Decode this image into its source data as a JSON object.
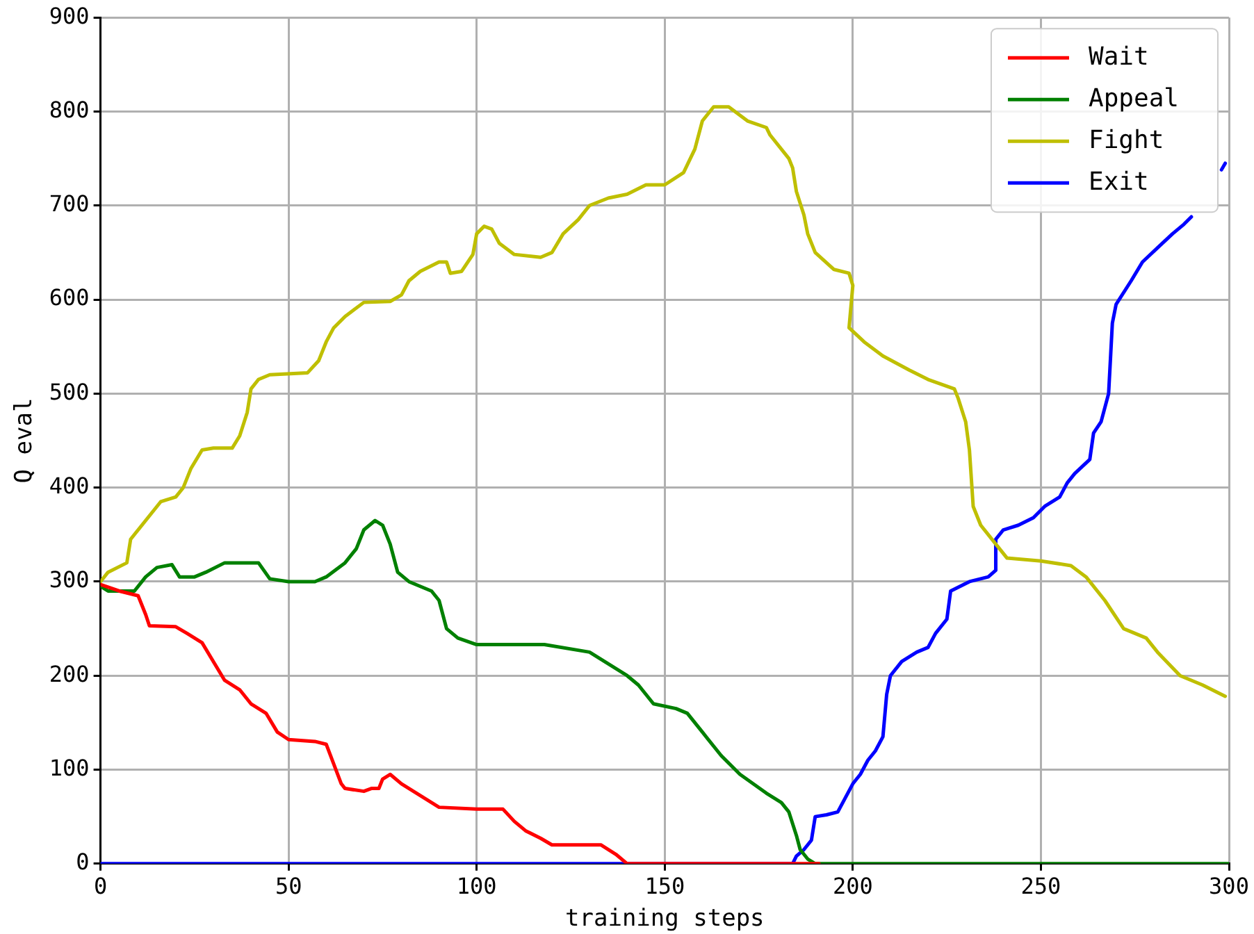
{
  "chart_data": {
    "type": "line",
    "xlabel": "training steps",
    "ylabel": "Q eval",
    "xlim": [
      0,
      300
    ],
    "xticks": [
      0,
      50,
      100,
      150,
      200,
      250,
      300
    ],
    "ylim": [
      0,
      900
    ],
    "yticks": [
      0,
      100,
      200,
      300,
      400,
      500,
      600,
      700,
      800,
      900
    ],
    "grid": true,
    "legend": "top right",
    "marker": "none",
    "line_style": "solid",
    "series": [
      {
        "name": "Wait",
        "color": "#ff0000",
        "x": [
          0,
          5,
          10,
          12,
          13,
          20,
          23,
          27,
          30,
          33,
          37,
          40,
          44,
          47,
          50,
          57,
          60,
          64,
          65,
          70,
          72,
          74,
          75,
          77,
          80,
          82,
          86,
          90,
          100,
          107,
          110,
          113,
          117,
          120,
          133,
          137,
          140,
          150,
          160,
          170,
          180,
          191
        ],
        "values": [
          297,
          290,
          285,
          265,
          253,
          252,
          245,
          235,
          215,
          195,
          185,
          170,
          160,
          140,
          132,
          130,
          127,
          85,
          80,
          77,
          80,
          80,
          90,
          95,
          85,
          80,
          70,
          60,
          58,
          58,
          45,
          35,
          27,
          20,
          20,
          10,
          0,
          0,
          0,
          0,
          0,
          0
        ]
      },
      {
        "name": "Appeal",
        "color": "#008000",
        "x": [
          0,
          2,
          9,
          12,
          15,
          19,
          21,
          25,
          28,
          33,
          42,
          45,
          50,
          57,
          60,
          65,
          68,
          70,
          73,
          75,
          77,
          79,
          82,
          88,
          90,
          92,
          95,
          100,
          118,
          130,
          134,
          140,
          143,
          147,
          153,
          156,
          160,
          165,
          170,
          177,
          181,
          183,
          185,
          186,
          188,
          190,
          200,
          250,
          300
        ],
        "values": [
          295,
          290,
          290,
          305,
          315,
          318,
          305,
          305,
          310,
          320,
          320,
          303,
          300,
          300,
          305,
          320,
          335,
          355,
          365,
          360,
          340,
          310,
          300,
          290,
          280,
          250,
          240,
          233,
          233,
          225,
          215,
          200,
          190,
          170,
          165,
          160,
          140,
          115,
          95,
          75,
          65,
          55,
          30,
          15,
          5,
          0,
          0,
          0,
          0
        ]
      },
      {
        "name": "Fight",
        "color": "#bfbf00",
        "x": [
          0,
          2,
          7,
          8,
          10,
          13,
          16,
          20,
          22,
          24,
          27,
          30,
          35,
          37,
          39,
          40,
          42,
          45,
          55,
          58,
          60,
          62,
          65,
          70,
          77,
          80,
          82,
          85,
          90,
          92,
          93,
          96,
          99,
          100,
          102,
          104,
          106,
          110,
          117,
          120,
          123,
          127,
          130,
          135,
          140,
          145,
          150,
          155,
          158,
          160,
          163,
          167,
          172,
          177,
          178,
          183,
          184,
          185,
          187,
          188,
          190,
          195,
          199,
          200,
          199,
          203,
          208,
          215,
          220,
          227,
          228,
          230,
          231,
          232,
          234,
          238,
          241,
          250,
          258,
          262,
          267,
          272,
          278,
          281,
          287,
          293,
          299
        ],
        "values": [
          300,
          310,
          320,
          345,
          355,
          370,
          385,
          390,
          400,
          420,
          440,
          442,
          442,
          455,
          480,
          505,
          515,
          520,
          522,
          535,
          555,
          570,
          582,
          597,
          598,
          605,
          620,
          630,
          640,
          640,
          628,
          630,
          648,
          670,
          678,
          675,
          660,
          648,
          645,
          650,
          670,
          685,
          700,
          708,
          712,
          722,
          722,
          735,
          760,
          790,
          805,
          805,
          790,
          783,
          775,
          750,
          740,
          715,
          690,
          670,
          650,
          632,
          628,
          615,
          570,
          555,
          540,
          525,
          515,
          505,
          495,
          470,
          440,
          380,
          360,
          340,
          325,
          322,
          317,
          305,
          280,
          250,
          240,
          225,
          200,
          190,
          178
        ]
      },
      {
        "name": "Exit",
        "color": "#0000ff",
        "x": [
          0,
          100,
          184,
          185,
          187,
          189,
          190,
          193,
          196,
          198,
          200,
          202,
          204,
          206,
          208,
          209,
          210,
          213,
          217,
          220,
          222,
          225,
          226,
          231,
          236,
          238,
          238,
          240,
          244,
          248,
          251,
          255,
          257,
          259,
          263,
          264,
          266,
          268,
          269,
          270,
          274,
          277,
          281,
          285,
          288,
          290,
          292,
          298,
          299
        ],
        "values": [
          0,
          0,
          0,
          8,
          15,
          25,
          50,
          52,
          55,
          70,
          85,
          95,
          110,
          120,
          135,
          180,
          200,
          215,
          225,
          230,
          245,
          260,
          290,
          300,
          305,
          312,
          345,
          355,
          360,
          368,
          380,
          390,
          405,
          415,
          430,
          458,
          470,
          500,
          575,
          595,
          620,
          640,
          655,
          670,
          680,
          688,
          null,
          738,
          745
        ]
      }
    ]
  }
}
